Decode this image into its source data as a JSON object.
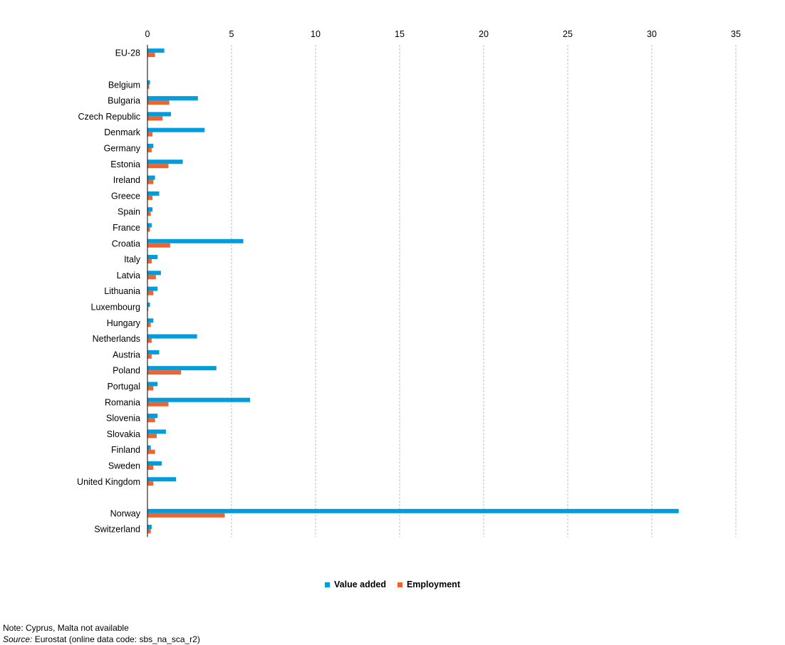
{
  "chart_data": {
    "type": "bar",
    "orientation": "horizontal",
    "xlim": [
      0,
      35
    ],
    "x_ticks": [
      "0",
      "5",
      "10",
      "15",
      "20",
      "25",
      "30",
      "35"
    ],
    "grid": true,
    "legend_position": "bottom",
    "categories": [
      "EU-28",
      "",
      "Belgium",
      "Bulgaria",
      "Czech Republic",
      "Denmark",
      "Germany",
      "Estonia",
      "Ireland",
      "Greece",
      "Spain",
      "France",
      "Croatia",
      "Italy",
      "Latvia",
      "Lithuania",
      "Luxembourg",
      "Hungary",
      "Netherlands",
      "Austria",
      "Poland",
      "Portugal",
      "Romania",
      "Slovenia",
      "Slovakia",
      "Finland",
      "Sweden",
      "United Kingdom",
      "",
      "Norway",
      "Switzerland"
    ],
    "series": [
      {
        "name": "Value added",
        "color": "#009CDB",
        "values": [
          1.0,
          null,
          0.15,
          3.0,
          1.4,
          3.4,
          0.35,
          2.1,
          0.45,
          0.7,
          0.3,
          0.25,
          5.7,
          0.6,
          0.8,
          0.6,
          0.15,
          0.35,
          2.95,
          0.7,
          4.1,
          0.6,
          6.1,
          0.6,
          1.1,
          0.2,
          0.85,
          1.7,
          null,
          31.6,
          0.25
        ]
      },
      {
        "name": "Employment",
        "color": "#EC6531",
        "values": [
          0.45,
          null,
          0.1,
          1.3,
          0.9,
          0.3,
          0.25,
          1.25,
          0.35,
          0.3,
          0.2,
          0.15,
          1.35,
          0.25,
          0.5,
          0.35,
          0.05,
          0.2,
          0.25,
          0.25,
          2.0,
          0.35,
          1.25,
          0.45,
          0.55,
          0.45,
          0.35,
          0.35,
          null,
          4.6,
          0.2
        ]
      }
    ]
  },
  "legend": {
    "value_added": "Value added",
    "employment": "Employment"
  },
  "footnotes": {
    "note": "Note: Cyprus, Malta not available",
    "source_label": "Source:",
    "source_text": " Eurostat (online data code: sbs_na_sca_r2)"
  }
}
